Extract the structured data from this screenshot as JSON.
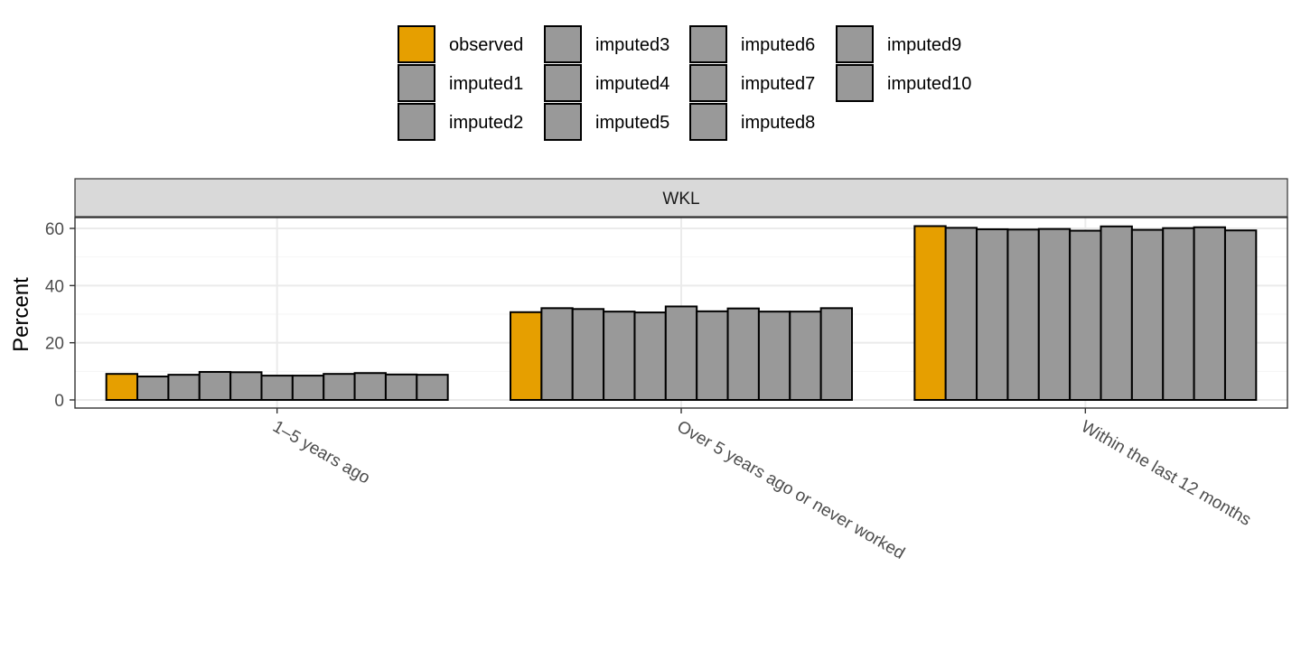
{
  "chart_data": {
    "type": "bar",
    "facet_label": "WKL",
    "ylabel": "Percent",
    "xlabel": "",
    "ylim": [
      0,
      66
    ],
    "yticks": [
      0,
      20,
      40,
      60
    ],
    "ytick_labels": [
      "0",
      "20",
      "40",
      "60"
    ],
    "grid": true,
    "legend_position": "top",
    "categories": [
      "1–5 years ago",
      "Over 5 years ago or never worked",
      "Within the last 12 months"
    ],
    "series": [
      {
        "name": "observed",
        "color": "#E69F00",
        "values": [
          9.1,
          30.7,
          60.8
        ]
      },
      {
        "name": "imputed1",
        "color": "#999999",
        "values": [
          8.2,
          32.1,
          60.2
        ]
      },
      {
        "name": "imputed2",
        "color": "#999999",
        "values": [
          8.8,
          31.8,
          59.7
        ]
      },
      {
        "name": "imputed3",
        "color": "#999999",
        "values": [
          9.8,
          30.9,
          59.6
        ]
      },
      {
        "name": "imputed4",
        "color": "#999999",
        "values": [
          9.7,
          30.6,
          59.8
        ]
      },
      {
        "name": "imputed5",
        "color": "#999999",
        "values": [
          8.5,
          32.7,
          59.2
        ]
      },
      {
        "name": "imputed6",
        "color": "#999999",
        "values": [
          8.5,
          31.0,
          60.7
        ]
      },
      {
        "name": "imputed7",
        "color": "#999999",
        "values": [
          9.1,
          32.0,
          59.5
        ]
      },
      {
        "name": "imputed8",
        "color": "#999999",
        "values": [
          9.4,
          30.9,
          60.1
        ]
      },
      {
        "name": "imputed9",
        "color": "#999999",
        "values": [
          8.9,
          30.9,
          60.4
        ]
      },
      {
        "name": "imputed10",
        "color": "#999999",
        "values": [
          8.8,
          32.1,
          59.3
        ]
      }
    ],
    "legend_order": [
      "observed",
      "imputed1",
      "imputed2",
      "imputed3",
      "imputed4",
      "imputed5",
      "imputed6",
      "imputed7",
      "imputed8",
      "imputed9",
      "imputed10"
    ],
    "colors": {
      "strip_background": "#d9d9d9",
      "grid_major": "#ebebeb",
      "grid_minor": "#f5f5f5",
      "bar_outline": "#000000"
    }
  }
}
